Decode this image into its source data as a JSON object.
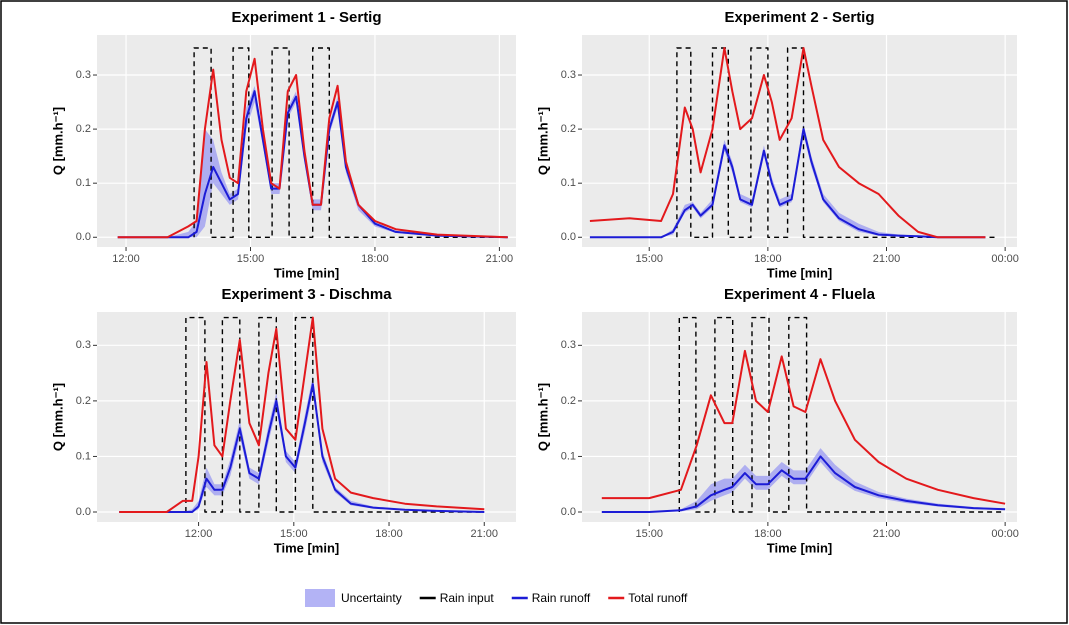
{
  "chart_data": [
    {
      "type": "line",
      "title": "Experiment 1 - Sertig",
      "x_label": "Time [min]",
      "y_label": "Q [mm.h⁻¹]",
      "xlim": [
        11.3,
        21.4
      ],
      "ylim": [
        -0.018,
        0.374
      ],
      "xticks": [
        {
          "value": 12,
          "label": "12:00"
        },
        {
          "value": 15,
          "label": "15:00"
        },
        {
          "value": 18,
          "label": "18:00"
        },
        {
          "value": 21,
          "label": "21:00"
        }
      ],
      "yticks": [
        {
          "value": 0,
          "label": "0.0"
        },
        0.1,
        0.2,
        0.3
      ],
      "x": [
        11.8,
        13.0,
        13.5,
        13.7,
        13.9,
        14.1,
        14.3,
        14.5,
        14.7,
        14.9,
        15.1,
        15.3,
        15.5,
        15.7,
        15.9,
        16.1,
        16.3,
        16.5,
        16.7,
        16.9,
        17.1,
        17.3,
        17.6,
        18.0,
        18.5,
        19.5,
        21.2
      ],
      "series": [
        {
          "name": "Uncertainty",
          "color": "#9a9af2",
          "upper": [
            0,
            0,
            0.01,
            0.03,
            0.2,
            0.18,
            0.12,
            0.08,
            0.09,
            0.24,
            0.28,
            0.19,
            0.1,
            0.1,
            0.24,
            0.27,
            0.16,
            0.07,
            0.07,
            0.21,
            0.26,
            0.14,
            0.06,
            0.03,
            0.01,
            0.003,
            0
          ],
          "lower": [
            0,
            0,
            0,
            0,
            0.02,
            0.1,
            0.08,
            0.06,
            0.07,
            0.2,
            0.25,
            0.17,
            0.08,
            0.08,
            0.22,
            0.25,
            0.14,
            0.05,
            0.05,
            0.19,
            0.24,
            0.12,
            0.05,
            0.02,
            0.008,
            0.002,
            0
          ]
        },
        {
          "name": "Rain input",
          "color": "#000000",
          "dash": true,
          "x": [
            13.64,
            13.64,
            14.05,
            14.05,
            14.58,
            14.58,
            14.96,
            14.96,
            15.52,
            15.52,
            15.93,
            15.93,
            16.5,
            16.5,
            16.9,
            16.9,
            21.2
          ],
          "values": [
            0,
            0.35,
            0.35,
            0,
            0,
            0.35,
            0.35,
            0,
            0,
            0.35,
            0.35,
            0,
            0,
            0.35,
            0.35,
            0,
            0
          ]
        },
        {
          "name": "Rain runoff",
          "color": "#1c1cd6",
          "values": [
            0,
            0,
            0,
            0.01,
            0.08,
            0.13,
            0.1,
            0.07,
            0.08,
            0.22,
            0.27,
            0.18,
            0.09,
            0.09,
            0.23,
            0.26,
            0.15,
            0.06,
            0.06,
            0.2,
            0.25,
            0.13,
            0.06,
            0.025,
            0.01,
            0.003,
            0
          ]
        },
        {
          "name": "Total runoff",
          "color": "#e3191c",
          "values": [
            0,
            0,
            0.02,
            0.03,
            0.2,
            0.31,
            0.18,
            0.11,
            0.1,
            0.27,
            0.33,
            0.2,
            0.1,
            0.09,
            0.27,
            0.3,
            0.16,
            0.06,
            0.06,
            0.22,
            0.28,
            0.14,
            0.06,
            0.03,
            0.015,
            0.005,
            0
          ]
        }
      ]
    },
    {
      "type": "line",
      "title": "Experiment 2 - Sertig",
      "x_label": "Time [min]",
      "y_label": "Q [mm.h⁻¹]",
      "xlim": [
        13.3,
        24.3
      ],
      "ylim": [
        -0.018,
        0.374
      ],
      "xticks": [
        {
          "value": 15,
          "label": "15:00"
        },
        {
          "value": 18,
          "label": "18:00"
        },
        {
          "value": 21,
          "label": "21:00"
        },
        {
          "value": 24,
          "label": "00:00"
        }
      ],
      "yticks": [
        {
          "value": 0,
          "label": "0.0"
        },
        0.1,
        0.2,
        0.3
      ],
      "x": [
        13.5,
        14.5,
        15.3,
        15.6,
        15.9,
        16.1,
        16.3,
        16.6,
        16.9,
        17.1,
        17.3,
        17.6,
        17.9,
        18.1,
        18.3,
        18.6,
        18.9,
        19.1,
        19.4,
        19.8,
        20.3,
        20.8,
        21.3,
        21.8,
        22.3,
        23.5
      ],
      "series": [
        {
          "color": "#9a9af2",
          "upper": [
            0,
            0,
            0,
            0.015,
            0.06,
            0.065,
            0.045,
            0.07,
            0.18,
            0.14,
            0.08,
            0.07,
            0.17,
            0.11,
            0.07,
            0.08,
            0.21,
            0.15,
            0.08,
            0.045,
            0.025,
            0.01,
            0.005,
            0.003,
            0,
            0
          ],
          "lower": [
            0,
            0,
            0,
            0.005,
            0.045,
            0.055,
            0.035,
            0.055,
            0.16,
            0.12,
            0.065,
            0.055,
            0.15,
            0.095,
            0.055,
            0.065,
            0.19,
            0.13,
            0.065,
            0.03,
            0.01,
            0.003,
            0.001,
            0.001,
            0,
            0
          ]
        },
        {
          "color": "#000000",
          "dash": true,
          "x": [
            15.7,
            15.7,
            16.05,
            16.05,
            16.6,
            16.6,
            17.0,
            17.0,
            17.57,
            17.57,
            18.0,
            18.0,
            18.5,
            18.5,
            18.9,
            18.9,
            23.8
          ],
          "values": [
            0,
            0.35,
            0.35,
            0,
            0,
            0.35,
            0.35,
            0,
            0,
            0.35,
            0.35,
            0,
            0,
            0.35,
            0.35,
            0,
            0
          ]
        },
        {
          "color": "#1c1cd6",
          "values": [
            0,
            0,
            0,
            0.01,
            0.05,
            0.06,
            0.04,
            0.06,
            0.17,
            0.13,
            0.07,
            0.06,
            0.16,
            0.1,
            0.06,
            0.07,
            0.2,
            0.14,
            0.07,
            0.035,
            0.015,
            0.005,
            0.003,
            0.002,
            0,
            0
          ]
        },
        {
          "color": "#e3191c",
          "values": [
            0.03,
            0.035,
            0.03,
            0.08,
            0.24,
            0.2,
            0.12,
            0.2,
            0.35,
            0.27,
            0.2,
            0.22,
            0.3,
            0.25,
            0.18,
            0.22,
            0.35,
            0.28,
            0.18,
            0.13,
            0.1,
            0.08,
            0.04,
            0.01,
            0,
            0
          ]
        }
      ]
    },
    {
      "type": "line",
      "title": "Experiment 3 - Dischma",
      "x_label": "Time [min]",
      "y_label": "Q [mm.h⁻¹]",
      "xlim": [
        8.8,
        22.0
      ],
      "ylim": [
        -0.018,
        0.36
      ],
      "xticks": [
        {
          "value": 12,
          "label": "12:00"
        },
        {
          "value": 15,
          "label": "15:00"
        },
        {
          "value": 18,
          "label": "18:00"
        },
        {
          "value": 21,
          "label": "21:00"
        }
      ],
      "yticks": [
        {
          "value": 0,
          "label": "0.0"
        },
        0.1,
        0.2,
        0.3
      ],
      "x": [
        9.5,
        11.0,
        11.5,
        11.8,
        12.0,
        12.25,
        12.5,
        12.75,
        13.0,
        13.3,
        13.6,
        13.9,
        14.2,
        14.45,
        14.75,
        15.05,
        15.35,
        15.6,
        15.9,
        16.3,
        16.8,
        17.5,
        18.5,
        19.5,
        21.0
      ],
      "series": [
        {
          "color": "#9a9af2",
          "upper": [
            0,
            0,
            0,
            0.005,
            0.02,
            0.08,
            0.05,
            0.05,
            0.095,
            0.165,
            0.08,
            0.07,
            0.155,
            0.215,
            0.11,
            0.09,
            0.175,
            0.245,
            0.11,
            0.045,
            0.02,
            0.01,
            0.005,
            0.003,
            0
          ],
          "lower": [
            0,
            0,
            0,
            0,
            0.005,
            0.045,
            0.03,
            0.03,
            0.065,
            0.135,
            0.06,
            0.05,
            0.125,
            0.185,
            0.09,
            0.07,
            0.145,
            0.215,
            0.09,
            0.035,
            0.012,
            0.006,
            0.003,
            0.001,
            0
          ]
        },
        {
          "color": "#000000",
          "dash": true,
          "x": [
            11.6,
            11.6,
            12.2,
            12.2,
            12.75,
            12.75,
            13.3,
            13.3,
            13.9,
            13.9,
            14.45,
            14.45,
            15.05,
            15.05,
            15.6,
            15.6,
            21.0
          ],
          "values": [
            0,
            0.35,
            0.35,
            0,
            0,
            0.35,
            0.35,
            0,
            0,
            0.35,
            0.35,
            0,
            0,
            0.35,
            0.35,
            0,
            0
          ]
        },
        {
          "color": "#1c1cd6",
          "values": [
            0,
            0,
            0,
            0,
            0.01,
            0.06,
            0.04,
            0.04,
            0.08,
            0.15,
            0.07,
            0.06,
            0.14,
            0.2,
            0.1,
            0.08,
            0.16,
            0.23,
            0.1,
            0.04,
            0.015,
            0.008,
            0.004,
            0.002,
            0
          ]
        },
        {
          "color": "#e3191c",
          "values": [
            0,
            0,
            0.02,
            0.02,
            0.1,
            0.27,
            0.12,
            0.1,
            0.2,
            0.31,
            0.16,
            0.12,
            0.25,
            0.33,
            0.15,
            0.13,
            0.25,
            0.35,
            0.15,
            0.06,
            0.035,
            0.025,
            0.015,
            0.01,
            0.005
          ]
        }
      ]
    },
    {
      "type": "line",
      "title": "Experiment 4 - Fluela",
      "x_label": "Time [min]",
      "y_label": "Q [mm.h⁻¹]",
      "xlim": [
        13.3,
        24.3
      ],
      "ylim": [
        -0.018,
        0.36
      ],
      "xticks": [
        {
          "value": 15,
          "label": "15:00"
        },
        {
          "value": 18,
          "label": "18:00"
        },
        {
          "value": 21,
          "label": "21:00"
        },
        {
          "value": 24,
          "label": "00:00"
        }
      ],
      "yticks": [
        {
          "value": 0,
          "label": "0.0"
        },
        0.1,
        0.2,
        0.3
      ],
      "x": [
        13.8,
        15.0,
        15.8,
        16.2,
        16.56,
        16.9,
        17.1,
        17.42,
        17.7,
        18.0,
        18.35,
        18.65,
        18.95,
        19.33,
        19.7,
        20.2,
        20.8,
        21.5,
        22.3,
        23.2,
        24.0
      ],
      "series": [
        {
          "color": "#9a9af2",
          "upper": [
            0,
            0,
            0.005,
            0.02,
            0.05,
            0.06,
            0.06,
            0.085,
            0.065,
            0.065,
            0.09,
            0.075,
            0.075,
            0.115,
            0.085,
            0.055,
            0.036,
            0.024,
            0.015,
            0.009,
            0.006
          ],
          "lower": [
            0,
            0,
            0.001,
            0.005,
            0.02,
            0.03,
            0.035,
            0.06,
            0.04,
            0.04,
            0.065,
            0.05,
            0.05,
            0.09,
            0.06,
            0.038,
            0.025,
            0.016,
            0.01,
            0.005,
            0.004
          ]
        },
        {
          "color": "#000000",
          "dash": true,
          "x": [
            15.76,
            15.76,
            16.18,
            16.18,
            16.66,
            16.66,
            17.11,
            17.11,
            17.6,
            17.6,
            18.03,
            18.03,
            18.53,
            18.53,
            18.98,
            18.98,
            24.0
          ],
          "values": [
            0,
            0.35,
            0.35,
            0,
            0,
            0.35,
            0.35,
            0,
            0,
            0.35,
            0.35,
            0,
            0,
            0.35,
            0.35,
            0,
            0
          ]
        },
        {
          "color": "#1c1cd6",
          "values": [
            0,
            0,
            0.003,
            0.01,
            0.03,
            0.04,
            0.045,
            0.07,
            0.05,
            0.05,
            0.075,
            0.06,
            0.06,
            0.1,
            0.07,
            0.045,
            0.03,
            0.02,
            0.012,
            0.007,
            0.005
          ]
        },
        {
          "color": "#e3191c",
          "values": [
            0.025,
            0.025,
            0.04,
            0.12,
            0.21,
            0.16,
            0.16,
            0.29,
            0.2,
            0.18,
            0.28,
            0.19,
            0.18,
            0.275,
            0.2,
            0.13,
            0.09,
            0.06,
            0.04,
            0.025,
            0.015
          ]
        }
      ]
    }
  ]
}
